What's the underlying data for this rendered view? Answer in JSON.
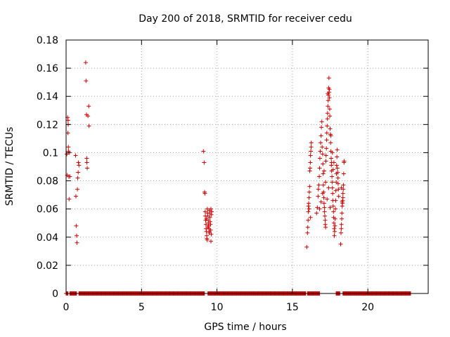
{
  "chart_data": {
    "type": "scatter",
    "title": "Day 200 of 2018, SRMTID for receiver cedu",
    "xlabel": "GPS time / hours",
    "ylabel": "SRMTID / TECUs",
    "xlim": [
      0,
      24
    ],
    "ylim": [
      0,
      0.18
    ],
    "grid": true,
    "marker": "+",
    "marker_color": "#d00000",
    "xticks": [
      0,
      5,
      10,
      15,
      20
    ],
    "xtick_labels": [
      "0",
      "5",
      "10",
      "15",
      "20"
    ],
    "yticks": [
      0,
      0.02,
      0.04,
      0.06,
      0.08,
      0.1,
      0.12,
      0.14,
      0.16,
      0.18
    ],
    "ytick_labels": [
      "0",
      "0.02",
      "0.04",
      "0.06",
      "0.08",
      "0.1",
      "0.12",
      "0.14",
      "0.16",
      "0.18"
    ],
    "zero_segments": [
      [
        0,
        0.15
      ],
      [
        0.25,
        0.7
      ],
      [
        0.85,
        9.2
      ],
      [
        9.4,
        15.9
      ],
      [
        16.0,
        16.8
      ],
      [
        17.9,
        18.15
      ],
      [
        18.35,
        22.85
      ]
    ],
    "points": [
      [
        0.05,
        0.099
      ],
      [
        0.08,
        0.084
      ],
      [
        0.1,
        0.125
      ],
      [
        0.12,
        0.114
      ],
      [
        0.13,
        0.123
      ],
      [
        0.14,
        0.12
      ],
      [
        0.15,
        0.104
      ],
      [
        0.16,
        0.101
      ],
      [
        0.18,
        0.083
      ],
      [
        0.2,
        0.067
      ],
      [
        0.22,
        0.1
      ],
      [
        0.25,
        0.083
      ],
      [
        0.63,
        0.098
      ],
      [
        0.65,
        0.069
      ],
      [
        0.67,
        0.048
      ],
      [
        0.7,
        0.041
      ],
      [
        0.72,
        0.036
      ],
      [
        0.75,
        0.074
      ],
      [
        0.77,
        0.082
      ],
      [
        0.8,
        0.086
      ],
      [
        0.82,
        0.093
      ],
      [
        0.85,
        0.091
      ],
      [
        1.3,
        0.164
      ],
      [
        1.32,
        0.151
      ],
      [
        1.35,
        0.127
      ],
      [
        1.37,
        0.096
      ],
      [
        1.38,
        0.093
      ],
      [
        1.4,
        0.089
      ],
      [
        1.45,
        0.126
      ],
      [
        1.5,
        0.133
      ],
      [
        1.52,
        0.119
      ],
      [
        9.1,
        0.101
      ],
      [
        9.15,
        0.093
      ],
      [
        9.18,
        0.072
      ],
      [
        9.2,
        0.071
      ],
      [
        9.22,
        0.058
      ],
      [
        9.23,
        0.055
      ],
      [
        9.25,
        0.052
      ],
      [
        9.27,
        0.049
      ],
      [
        9.28,
        0.046
      ],
      [
        9.3,
        0.044
      ],
      [
        9.32,
        0.041
      ],
      [
        9.33,
        0.039
      ],
      [
        9.35,
        0.038
      ],
      [
        9.36,
        0.06
      ],
      [
        9.38,
        0.057
      ],
      [
        9.4,
        0.055
      ],
      [
        9.42,
        0.052
      ],
      [
        9.43,
        0.05
      ],
      [
        9.45,
        0.048
      ],
      [
        9.47,
        0.046
      ],
      [
        9.48,
        0.043
      ],
      [
        9.5,
        0.059
      ],
      [
        9.52,
        0.057
      ],
      [
        9.53,
        0.054
      ],
      [
        9.55,
        0.051
      ],
      [
        9.57,
        0.049
      ],
      [
        9.58,
        0.045
      ],
      [
        9.6,
        0.037
      ],
      [
        9.62,
        0.042
      ],
      [
        9.63,
        0.056
      ],
      [
        9.65,
        0.058
      ],
      [
        9.3,
        0.053
      ],
      [
        9.4,
        0.047
      ],
      [
        9.5,
        0.044
      ],
      [
        9.6,
        0.06
      ],
      [
        15.95,
        0.033
      ],
      [
        16.0,
        0.043
      ],
      [
        16.02,
        0.047
      ],
      [
        16.04,
        0.052
      ],
      [
        16.05,
        0.058
      ],
      [
        16.06,
        0.062
      ],
      [
        16.08,
        0.064
      ],
      [
        16.1,
        0.068
      ],
      [
        16.12,
        0.072
      ],
      [
        16.14,
        0.076
      ],
      [
        16.15,
        0.087
      ],
      [
        16.17,
        0.089
      ],
      [
        16.19,
        0.093
      ],
      [
        16.2,
        0.098
      ],
      [
        16.22,
        0.101
      ],
      [
        16.24,
        0.104
      ],
      [
        16.25,
        0.107
      ],
      [
        16.1,
        0.06
      ],
      [
        16.2,
        0.054
      ],
      [
        16.6,
        0.057
      ],
      [
        16.65,
        0.061
      ],
      [
        16.7,
        0.069
      ],
      [
        16.72,
        0.074
      ],
      [
        16.75,
        0.077
      ],
      [
        16.78,
        0.083
      ],
      [
        16.8,
        0.089
      ],
      [
        16.82,
        0.096
      ],
      [
        16.85,
        0.101
      ],
      [
        16.87,
        0.107
      ],
      [
        16.9,
        0.112
      ],
      [
        16.92,
        0.118
      ],
      [
        16.95,
        0.122
      ],
      [
        16.97,
        0.104
      ],
      [
        17.0,
        0.099
      ],
      [
        17.02,
        0.092
      ],
      [
        17.04,
        0.085
      ],
      [
        17.05,
        0.077
      ],
      [
        17.07,
        0.072
      ],
      [
        17.08,
        0.068
      ],
      [
        17.1,
        0.064
      ],
      [
        17.12,
        0.061
      ],
      [
        17.13,
        0.058
      ],
      [
        17.15,
        0.055
      ],
      [
        17.17,
        0.052
      ],
      [
        17.18,
        0.049
      ],
      [
        17.2,
        0.047
      ],
      [
        17.22,
        0.094
      ],
      [
        17.23,
        0.098
      ],
      [
        17.25,
        0.103
      ],
      [
        17.27,
        0.109
      ],
      [
        17.28,
        0.114
      ],
      [
        17.3,
        0.119
      ],
      [
        17.32,
        0.124
      ],
      [
        17.33,
        0.128
      ],
      [
        17.35,
        0.133
      ],
      [
        17.37,
        0.137
      ],
      [
        17.38,
        0.141
      ],
      [
        17.4,
        0.146
      ],
      [
        17.42,
        0.153
      ],
      [
        17.43,
        0.143
      ],
      [
        17.45,
        0.139
      ],
      [
        17.47,
        0.131
      ],
      [
        17.48,
        0.126
      ],
      [
        17.5,
        0.117
      ],
      [
        17.52,
        0.113
      ],
      [
        17.53,
        0.107
      ],
      [
        17.55,
        0.101
      ],
      [
        17.57,
        0.096
      ],
      [
        17.58,
        0.091
      ],
      [
        17.6,
        0.087
      ],
      [
        17.62,
        0.083
      ],
      [
        17.63,
        0.079
      ],
      [
        17.65,
        0.075
      ],
      [
        17.67,
        0.071
      ],
      [
        17.68,
        0.066
      ],
      [
        17.7,
        0.062
      ],
      [
        17.72,
        0.058
      ],
      [
        17.73,
        0.054
      ],
      [
        17.75,
        0.05
      ],
      [
        17.77,
        0.046
      ],
      [
        17.78,
        0.041
      ],
      [
        17.8,
        0.044
      ],
      [
        17.82,
        0.048
      ],
      [
        17.83,
        0.053
      ],
      [
        17.85,
        0.06
      ],
      [
        17.87,
        0.066
      ],
      [
        17.88,
        0.073
      ],
      [
        17.9,
        0.079
      ],
      [
        17.92,
        0.085
      ],
      [
        17.93,
        0.091
      ],
      [
        17.95,
        0.097
      ],
      [
        17.97,
        0.102
      ],
      [
        17.98,
        0.089
      ],
      [
        18.0,
        0.086
      ],
      [
        18.02,
        0.082
      ],
      [
        18.03,
        0.078
      ],
      [
        18.05,
        0.074
      ],
      [
        18.07,
        0.069
      ],
      [
        17.3,
        0.067
      ],
      [
        17.4,
        0.075
      ],
      [
        17.5,
        0.061
      ],
      [
        17.6,
        0.093
      ],
      [
        17.7,
        0.088
      ],
      [
        17.2,
        0.079
      ],
      [
        17.1,
        0.087
      ],
      [
        17.0,
        0.071
      ],
      [
        16.9,
        0.065
      ],
      [
        16.8,
        0.06
      ],
      [
        17.45,
        0.145
      ],
      [
        17.35,
        0.142
      ],
      [
        17.55,
        0.112
      ],
      [
        17.65,
        0.1
      ],
      [
        17.75,
        0.093
      ],
      [
        18.2,
        0.035
      ],
      [
        18.22,
        0.043
      ],
      [
        18.24,
        0.046
      ],
      [
        18.25,
        0.049
      ],
      [
        18.27,
        0.053
      ],
      [
        18.28,
        0.057
      ],
      [
        18.3,
        0.062
      ],
      [
        18.32,
        0.064
      ],
      [
        18.33,
        0.066
      ],
      [
        18.35,
        0.071
      ],
      [
        18.37,
        0.074
      ],
      [
        18.38,
        0.077
      ],
      [
        18.4,
        0.085
      ],
      [
        18.42,
        0.093
      ],
      [
        18.43,
        0.094
      ],
      [
        18.3,
        0.065
      ],
      [
        18.35,
        0.068
      ],
      [
        18.25,
        0.075
      ]
    ]
  }
}
